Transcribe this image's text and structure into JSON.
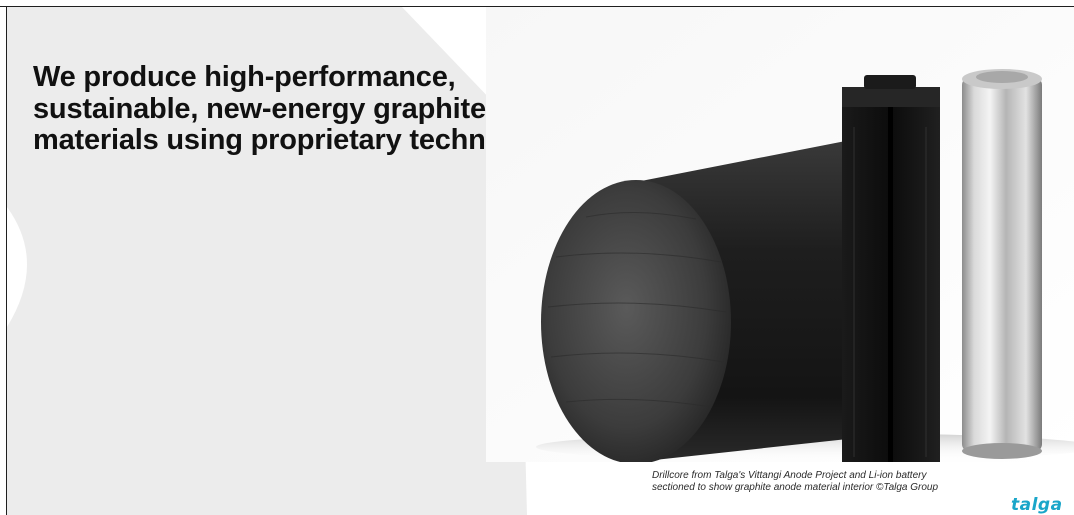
{
  "slide": {
    "headline": "We produce high-performance, sustainable, new-energy graphite materials using proprietary technologies",
    "caption_line_1": "Drillcore from Talga's Vittangi Anode Project and Li-ion battery",
    "caption_line_2": "sectioned to show graphite anode material interior ©Talga Group",
    "logo_text": "talga"
  },
  "colors": {
    "accent": "#1aa6c9",
    "background": "#ffffff",
    "decor_panel": "#ececec",
    "headline": "#111111"
  },
  "photo_subjects": [
    "graphite-drillcore",
    "sectioned-battery-block",
    "li-ion-cell"
  ]
}
